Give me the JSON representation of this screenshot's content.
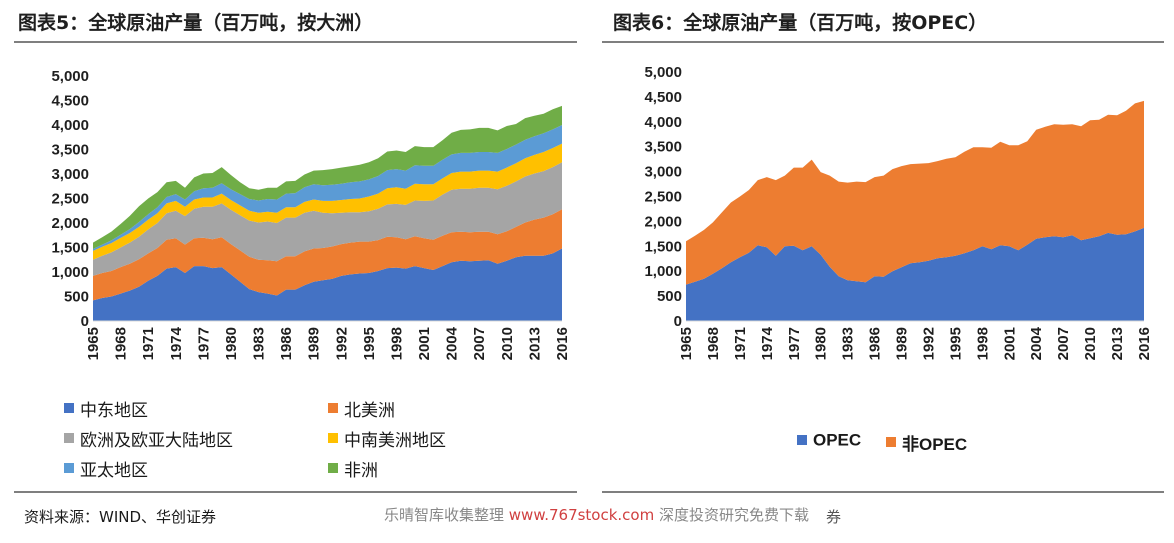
{
  "left_title": "图表5：全球原油产量（百万吨，按大洲）",
  "right_title": "图表6：全球原油产量（百万吨，按OPEC）",
  "footer": {
    "source": "资料来源：WIND、华创证券",
    "watermark_prefix": "乐晴智库收集整理 ",
    "watermark_url": "www.767stock.com",
    "watermark_suffix": " 深度投资研究免费下载",
    "tail": "券"
  },
  "chart_data": [
    {
      "type": "area",
      "stacked": true,
      "x": [
        1965,
        1966,
        1967,
        1968,
        1969,
        1970,
        1971,
        1972,
        1973,
        1974,
        1975,
        1976,
        1977,
        1978,
        1979,
        1980,
        1981,
        1982,
        1983,
        1984,
        1985,
        1986,
        1987,
        1988,
        1989,
        1990,
        1991,
        1992,
        1993,
        1994,
        1995,
        1996,
        1997,
        1998,
        1999,
        2000,
        2001,
        2002,
        2003,
        2004,
        2005,
        2006,
        2007,
        2008,
        2009,
        2010,
        2011,
        2012,
        2013,
        2014,
        2015,
        2016
      ],
      "x_tick_labels": [
        "1965",
        "1968",
        "1971",
        "1974",
        "1977",
        "1980",
        "1983",
        "1986",
        "1989",
        "1992",
        "1995",
        "1998",
        "2001",
        "2004",
        "2007",
        "2010",
        "2013",
        "2016"
      ],
      "y_tick_labels": [
        "0",
        "500",
        "1,000",
        "1,500",
        "2,000",
        "2,500",
        "3,000",
        "3,500",
        "4,000",
        "4,500",
        "5,000"
      ],
      "ylim": [
        0,
        5000
      ],
      "grid": false,
      "legend_position": "bottom",
      "series": [
        {
          "name": "中东地区",
          "color": "#4472c4",
          "values": [
            420,
            470,
            500,
            560,
            620,
            700,
            820,
            920,
            1070,
            1100,
            980,
            1120,
            1120,
            1080,
            1100,
            950,
            800,
            650,
            590,
            560,
            520,
            640,
            640,
            730,
            800,
            830,
            860,
            920,
            950,
            970,
            980,
            1020,
            1080,
            1090,
            1070,
            1120,
            1080,
            1040,
            1120,
            1200,
            1230,
            1220,
            1230,
            1240,
            1170,
            1230,
            1300,
            1330,
            1330,
            1330,
            1380,
            1480
          ]
        },
        {
          "name": "北美洲",
          "color": "#ed7d31",
          "values": [
            500,
            510,
            520,
            540,
            550,
            560,
            560,
            570,
            590,
            590,
            580,
            570,
            580,
            590,
            610,
            620,
            640,
            660,
            660,
            680,
            700,
            680,
            680,
            690,
            680,
            660,
            660,
            650,
            650,
            650,
            640,
            630,
            640,
            620,
            600,
            610,
            610,
            620,
            620,
            610,
            590,
            590,
            590,
            580,
            600,
            600,
            620,
            680,
            740,
            780,
            800,
            800
          ]
        },
        {
          "name": "欧洲及欧亚大陆地区",
          "color": "#a5a5a5",
          "values": [
            330,
            350,
            380,
            400,
            430,
            460,
            490,
            510,
            540,
            560,
            580,
            600,
            630,
            660,
            690,
            700,
            720,
            740,
            760,
            790,
            780,
            790,
            790,
            790,
            770,
            720,
            680,
            640,
            620,
            600,
            620,
            640,
            660,
            680,
            700,
            730,
            760,
            800,
            840,
            870,
            880,
            890,
            900,
            900,
            920,
            930,
            930,
            940,
            940,
            950,
            960,
            960
          ]
        },
        {
          "name": "中南美洲地区",
          "color": "#ffc000",
          "values": [
            180,
            185,
            190,
            195,
            195,
            200,
            200,
            200,
            200,
            200,
            190,
            190,
            190,
            190,
            200,
            200,
            200,
            200,
            200,
            200,
            210,
            210,
            210,
            220,
            230,
            240,
            250,
            260,
            270,
            280,
            300,
            310,
            330,
            340,
            330,
            340,
            340,
            330,
            330,
            340,
            350,
            350,
            350,
            350,
            360,
            370,
            370,
            370,
            380,
            390,
            390,
            380
          ]
        },
        {
          "name": "亚太地区",
          "color": "#5b9bd5",
          "values": [
            40,
            45,
            55,
            65,
            80,
            100,
            110,
            120,
            130,
            140,
            150,
            170,
            190,
            200,
            210,
            220,
            230,
            240,
            250,
            260,
            270,
            280,
            290,
            300,
            310,
            320,
            330,
            330,
            340,
            350,
            350,
            360,
            370,
            370,
            370,
            380,
            380,
            380,
            380,
            380,
            380,
            380,
            380,
            380,
            380,
            380,
            380,
            380,
            380,
            380,
            380,
            380
          ]
        },
        {
          "name": "非洲",
          "color": "#70ad47",
          "values": [
            130,
            150,
            180,
            220,
            270,
            320,
            320,
            310,
            300,
            270,
            240,
            280,
            300,
            300,
            330,
            290,
            240,
            220,
            220,
            230,
            240,
            250,
            250,
            260,
            280,
            310,
            320,
            330,
            330,
            340,
            350,
            360,
            380,
            380,
            380,
            390,
            380,
            380,
            400,
            440,
            470,
            480,
            490,
            490,
            460,
            470,
            420,
            440,
            420,
            400,
            410,
            390
          ]
        }
      ]
    },
    {
      "type": "area",
      "stacked": true,
      "x": [
        1965,
        1966,
        1967,
        1968,
        1969,
        1970,
        1971,
        1972,
        1973,
        1974,
        1975,
        1976,
        1977,
        1978,
        1979,
        1980,
        1981,
        1982,
        1983,
        1984,
        1985,
        1986,
        1987,
        1988,
        1989,
        1990,
        1991,
        1992,
        1993,
        1994,
        1995,
        1996,
        1997,
        1998,
        1999,
        2000,
        2001,
        2002,
        2003,
        2004,
        2005,
        2006,
        2007,
        2008,
        2009,
        2010,
        2011,
        2012,
        2013,
        2014,
        2015,
        2016
      ],
      "x_tick_labels": [
        "1965",
        "1968",
        "1971",
        "1974",
        "1977",
        "1980",
        "1983",
        "1986",
        "1989",
        "1992",
        "1995",
        "1998",
        "2001",
        "2004",
        "2007",
        "2010",
        "2013",
        "2016"
      ],
      "y_tick_labels": [
        "0",
        "500",
        "1,000",
        "1,500",
        "2,000",
        "2,500",
        "3,000",
        "3,500",
        "4,000",
        "4,500",
        "5,000"
      ],
      "ylim": [
        0,
        5000
      ],
      "grid": false,
      "legend_position": "bottom",
      "series": [
        {
          "name": "OPEC",
          "color": "#4472c4",
          "values": [
            730,
            790,
            850,
            950,
            1060,
            1180,
            1280,
            1370,
            1520,
            1480,
            1310,
            1500,
            1510,
            1420,
            1500,
            1330,
            1090,
            900,
            820,
            800,
            780,
            900,
            890,
            1000,
            1080,
            1160,
            1180,
            1210,
            1260,
            1280,
            1310,
            1360,
            1420,
            1500,
            1440,
            1520,
            1500,
            1420,
            1530,
            1650,
            1680,
            1700,
            1680,
            1720,
            1620,
            1660,
            1700,
            1770,
            1730,
            1740,
            1800,
            1870
          ]
        },
        {
          "name": "非OPEC",
          "color": "#ed7d31",
          "values": [
            870,
            920,
            980,
            1030,
            1120,
            1200,
            1220,
            1260,
            1310,
            1410,
            1520,
            1420,
            1570,
            1660,
            1740,
            1660,
            1830,
            1900,
            1960,
            2000,
            2010,
            1990,
            2030,
            2050,
            2030,
            1990,
            1980,
            1960,
            1950,
            1980,
            1980,
            2040,
            2070,
            1990,
            2040,
            2080,
            2030,
            2110,
            2080,
            2190,
            2220,
            2250,
            2260,
            2230,
            2290,
            2370,
            2340,
            2370,
            2400,
            2480,
            2570,
            2550
          ]
        }
      ]
    }
  ]
}
